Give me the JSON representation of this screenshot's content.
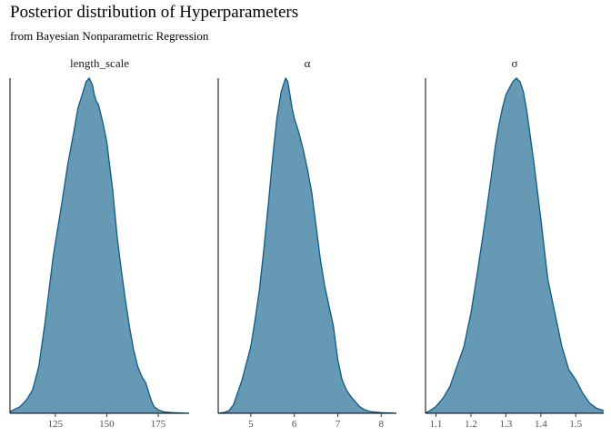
{
  "title": "Posterior distribution of Hyperparameters",
  "subtitle": "from Bayesian Nonparametric Regression",
  "colors": {
    "fill": "#6699b3",
    "line": "#0e5a8a"
  },
  "chart_data": {
    "type": "area",
    "title": "Posterior distribution of Hyperparameters",
    "subtitle": "from Bayesian Nonparametric Regression",
    "legend": "none",
    "grid": false,
    "panels": [
      {
        "label": "length_scale",
        "xlim": [
          103,
          190
        ],
        "ylim": [
          0,
          1
        ],
        "ticks": [
          125,
          150,
          175
        ],
        "tick_labels": [
          "125",
          "150",
          "175"
        ],
        "x": [
          103,
          108,
          111,
          114,
          117,
          120,
          124,
          128,
          131,
          134,
          136,
          138,
          140,
          141.5,
          143,
          144,
          145,
          146,
          148,
          150,
          153,
          155,
          157,
          159,
          161,
          163,
          165,
          167,
          169,
          171,
          172,
          173,
          175,
          178,
          182,
          186,
          190
        ],
        "y": [
          0.005,
          0.02,
          0.04,
          0.07,
          0.14,
          0.27,
          0.47,
          0.62,
          0.74,
          0.84,
          0.91,
          0.95,
          0.99,
          1.0,
          0.98,
          0.95,
          0.93,
          0.92,
          0.87,
          0.81,
          0.66,
          0.53,
          0.43,
          0.34,
          0.26,
          0.19,
          0.14,
          0.11,
          0.09,
          0.05,
          0.033,
          0.02,
          0.01,
          0.004,
          0.002,
          0.001,
          0.0
        ]
      },
      {
        "label": "α",
        "xlim": [
          4.25,
          8.35
        ],
        "ylim": [
          0,
          1
        ],
        "ticks": [
          5,
          6,
          7,
          8
        ],
        "tick_labels": [
          "5",
          "6",
          "7",
          "8"
        ],
        "x": [
          4.25,
          4.4,
          4.5,
          4.6,
          4.8,
          5.0,
          5.1,
          5.2,
          5.3,
          5.4,
          5.5,
          5.6,
          5.7,
          5.8,
          5.85,
          5.9,
          5.95,
          6.0,
          6.1,
          6.2,
          6.3,
          6.4,
          6.5,
          6.6,
          6.7,
          6.8,
          6.9,
          7.0,
          7.1,
          7.2,
          7.3,
          7.4,
          7.5,
          7.6,
          7.75,
          8.0,
          8.35
        ],
        "y": [
          0.0,
          0.003,
          0.008,
          0.025,
          0.1,
          0.2,
          0.28,
          0.37,
          0.49,
          0.62,
          0.76,
          0.88,
          0.96,
          1.0,
          0.99,
          0.95,
          0.91,
          0.88,
          0.84,
          0.79,
          0.73,
          0.66,
          0.56,
          0.46,
          0.38,
          0.32,
          0.26,
          0.16,
          0.1,
          0.07,
          0.05,
          0.035,
          0.02,
          0.012,
          0.005,
          0.002,
          0.0
        ]
      },
      {
        "label": "σ",
        "xlim": [
          1.07,
          1.58
        ],
        "ylim": [
          0,
          1
        ],
        "ticks": [
          1.1,
          1.2,
          1.3,
          1.4,
          1.5
        ],
        "tick_labels": [
          "1.1",
          "1.2",
          "1.3",
          "1.4",
          "1.5"
        ],
        "x": [
          1.07,
          1.08,
          1.1,
          1.12,
          1.14,
          1.16,
          1.18,
          1.2,
          1.22,
          1.24,
          1.26,
          1.27,
          1.28,
          1.29,
          1.3,
          1.31,
          1.32,
          1.33,
          1.34,
          1.35,
          1.36,
          1.38,
          1.4,
          1.42,
          1.44,
          1.46,
          1.48,
          1.5,
          1.52,
          1.54,
          1.56,
          1.58
        ],
        "y": [
          0.002,
          0.006,
          0.02,
          0.045,
          0.08,
          0.14,
          0.2,
          0.3,
          0.43,
          0.57,
          0.72,
          0.8,
          0.86,
          0.91,
          0.95,
          0.97,
          0.99,
          1.0,
          0.99,
          0.96,
          0.9,
          0.75,
          0.58,
          0.4,
          0.3,
          0.2,
          0.13,
          0.1,
          0.06,
          0.03,
          0.015,
          0.008
        ]
      }
    ]
  }
}
